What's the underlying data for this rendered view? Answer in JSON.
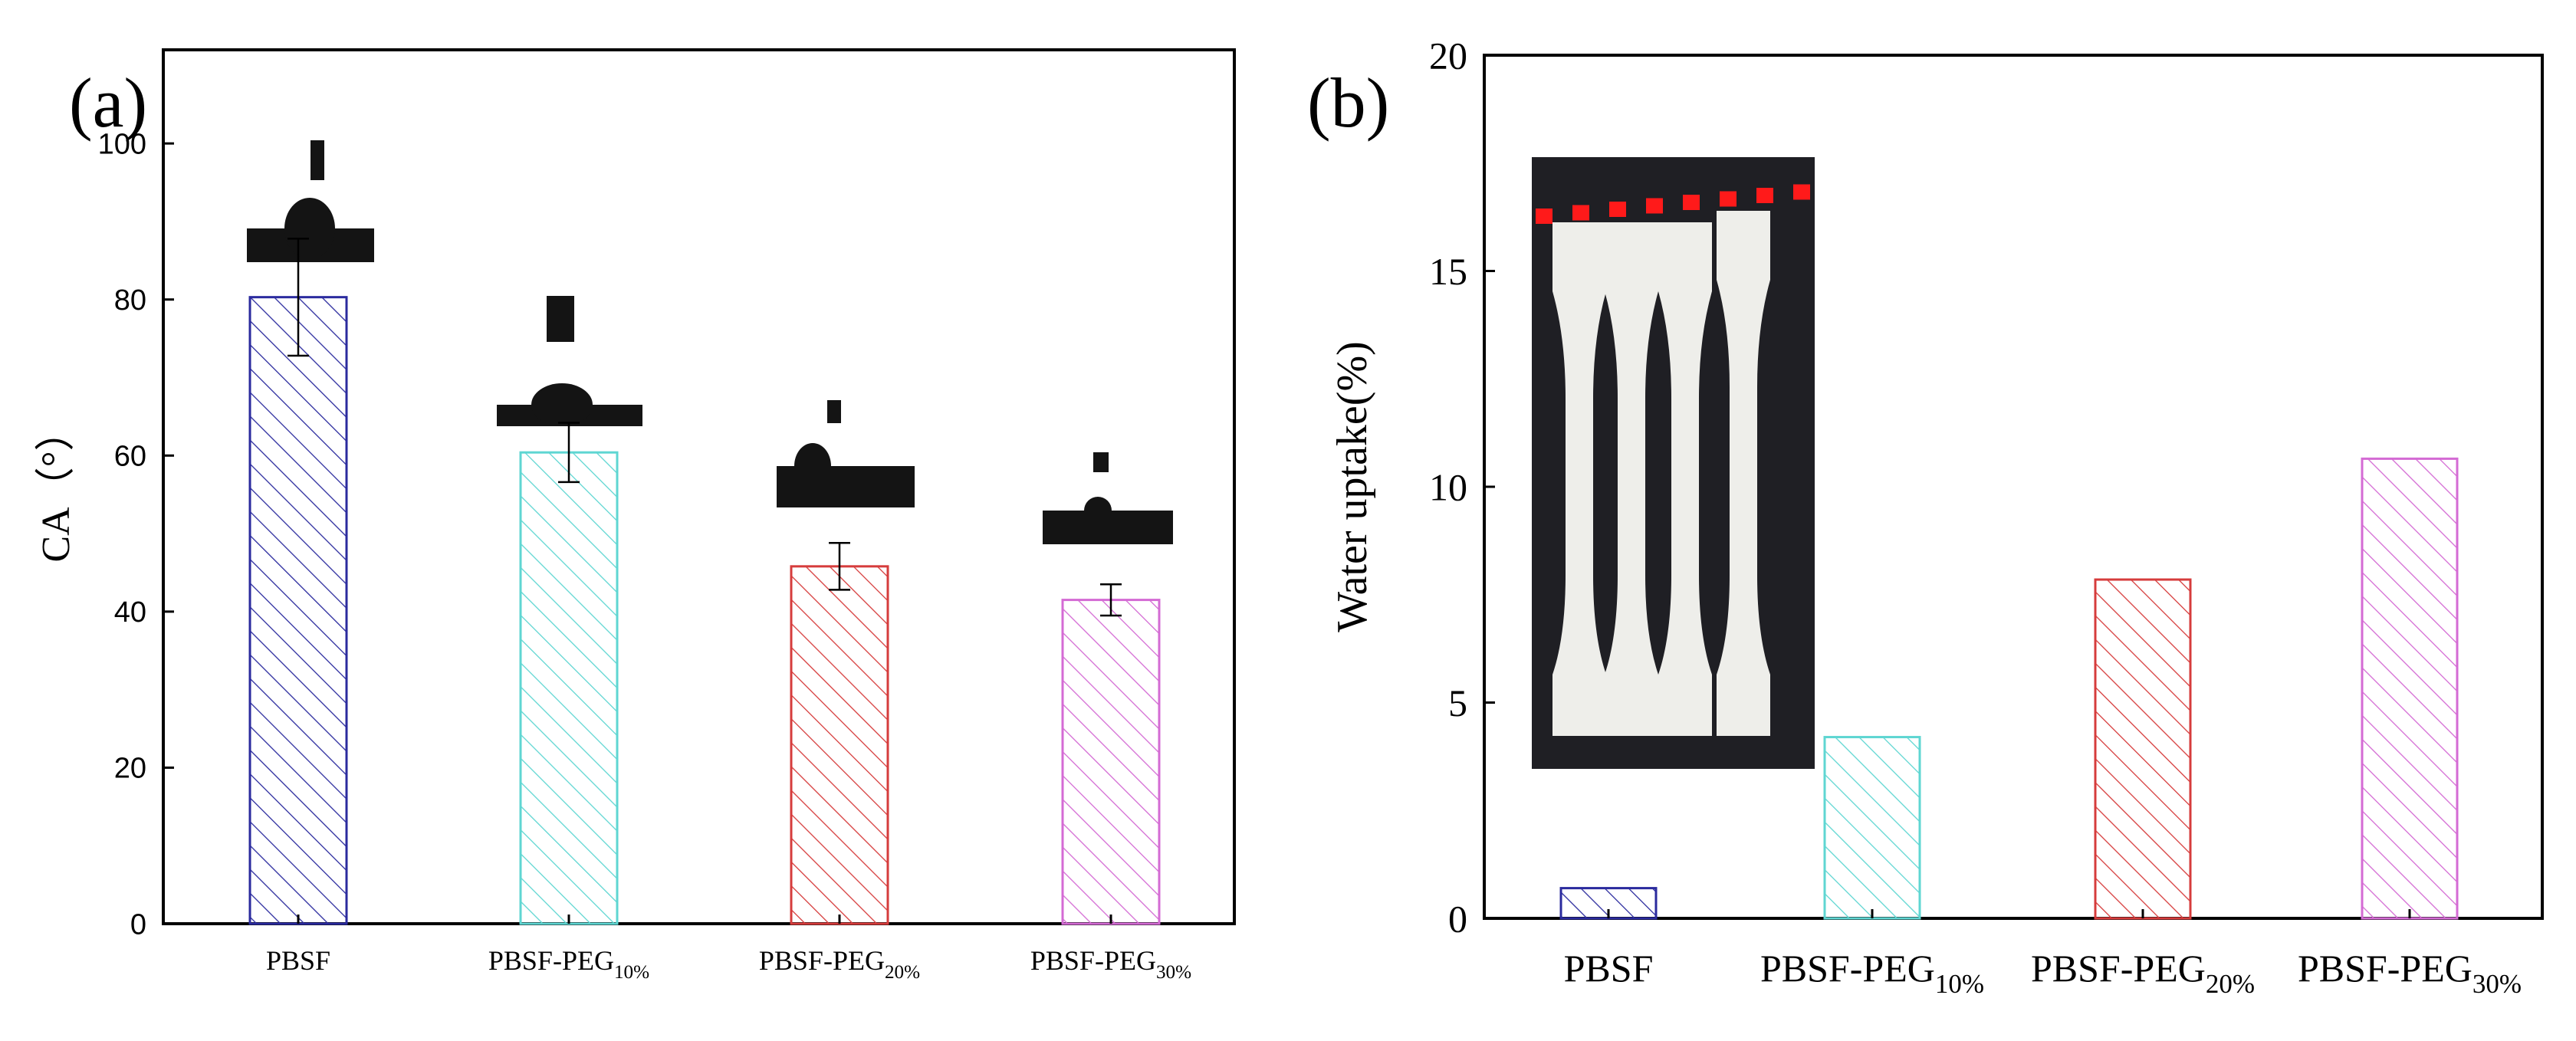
{
  "chart_data": [
    {
      "panel_label": "(a)",
      "type": "bar",
      "title": "",
      "xlabel": "",
      "ylabel": "CA（°）",
      "ylim": [
        0,
        112
      ],
      "yticks": [
        "0",
        "20",
        "40",
        "60",
        "80",
        "100"
      ],
      "categories": [
        {
          "base": "PBSF",
          "sub": ""
        },
        {
          "base": "PBSF-PEG",
          "sub": "10%"
        },
        {
          "base": "PBSF-PEG",
          "sub": "20%"
        },
        {
          "base": "PBSF-PEG",
          "sub": "30%"
        }
      ],
      "values": [
        80.3,
        60.4,
        45.8,
        41.5
      ],
      "errors": [
        7.5,
        3.8,
        3.0,
        2.0
      ],
      "colors": [
        "#2b2b9e",
        "#5fd6d2",
        "#d63c3c",
        "#d46bd4"
      ],
      "insets": "water-droplet contact-angle images above each bar"
    },
    {
      "panel_label": "(b)",
      "type": "bar",
      "title": "",
      "xlabel": "",
      "ylabel": "Water uptake(%)",
      "ylim": [
        0,
        20
      ],
      "yticks": [
        "0",
        "5",
        "10",
        "15",
        "20"
      ],
      "categories": [
        {
          "base": "PBSF",
          "sub": ""
        },
        {
          "base": "PBSF-PEG",
          "sub": "10%"
        },
        {
          "base": "PBSF-PEG",
          "sub": "20%"
        },
        {
          "base": "PBSF-PEG",
          "sub": "30%"
        }
      ],
      "values": [
        0.7,
        4.2,
        7.85,
        10.65
      ],
      "colors": [
        "#2b2b9e",
        "#5fd6d2",
        "#d63c3c",
        "#d46bd4"
      ],
      "insets": "photo of four white dumbbell specimens with red dotted line"
    }
  ]
}
